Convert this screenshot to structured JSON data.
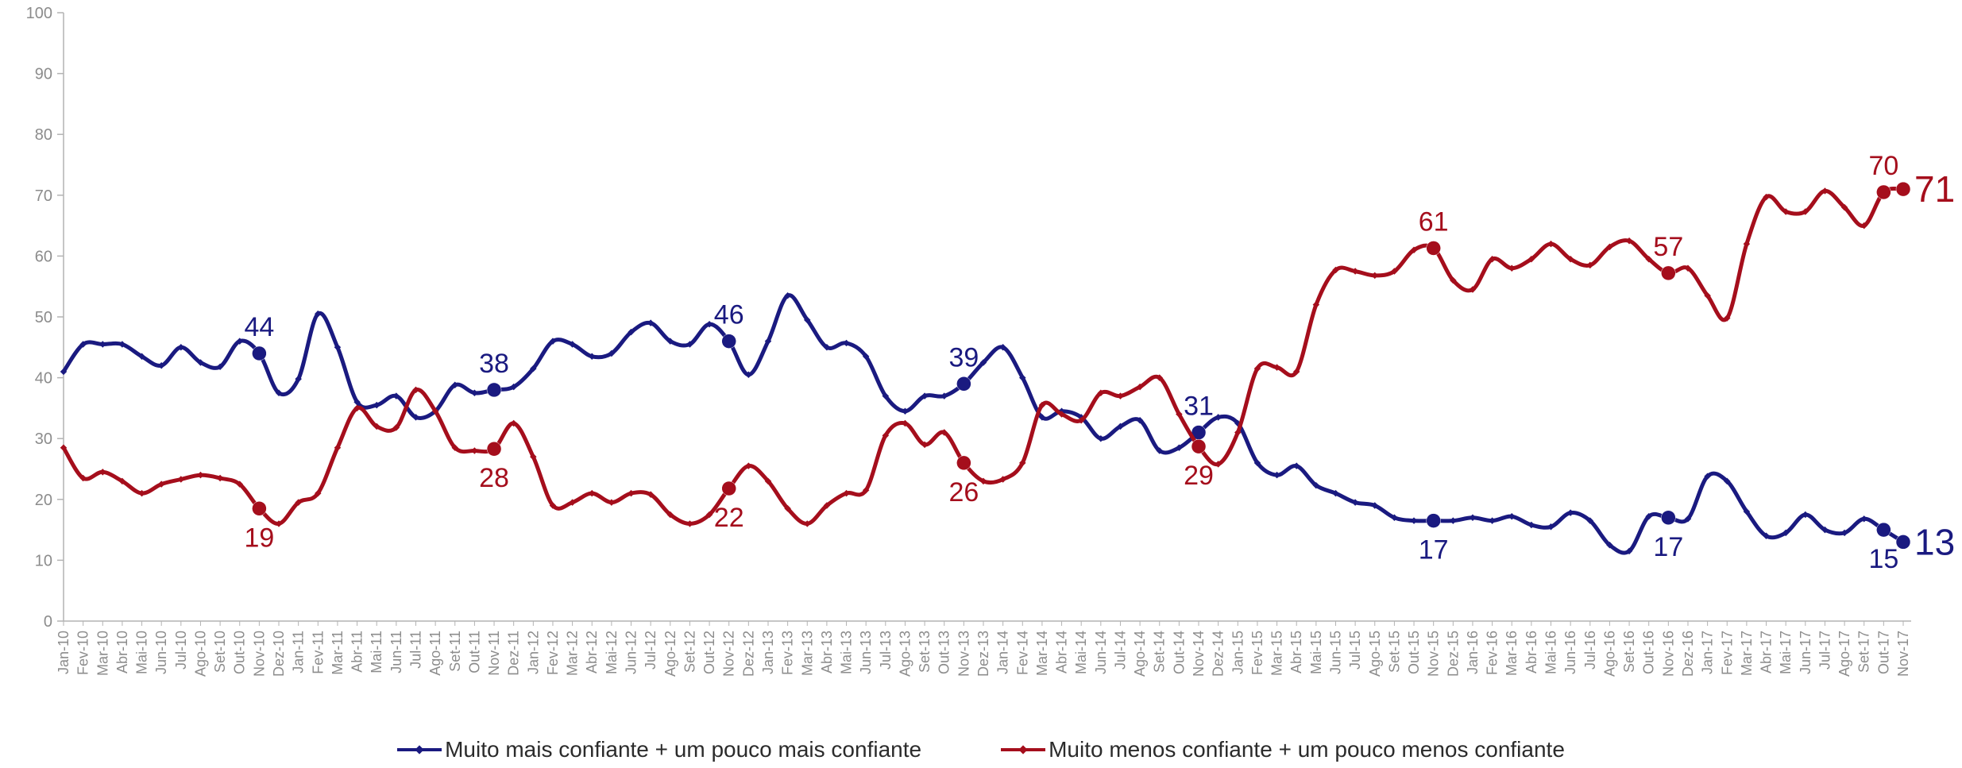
{
  "chart_data": {
    "type": "line",
    "ylim": [
      0,
      100
    ],
    "yticks": [
      0,
      10,
      20,
      30,
      40,
      50,
      60,
      70,
      80,
      90,
      100
    ],
    "grid": false,
    "legend_position": "bottom",
    "categories": [
      "Jan-10",
      "Fev-10",
      "Mar-10",
      "Abr-10",
      "Mai-10",
      "Jun-10",
      "Jul-10",
      "Ago-10",
      "Set-10",
      "Out-10",
      "Nov-10",
      "Dez-10",
      "Jan-11",
      "Fev-11",
      "Mar-11",
      "Abr-11",
      "Mai-11",
      "Jun-11",
      "Jul-11",
      "Ago-11",
      "Set-11",
      "Out-11",
      "Nov-11",
      "Dez-11",
      "Jan-12",
      "Fev-12",
      "Mar-12",
      "Abr-12",
      "Mai-12",
      "Jun-12",
      "Jul-12",
      "Ago-12",
      "Set-12",
      "Out-12",
      "Nov-12",
      "Dez-12",
      "Jan-13",
      "Fev-13",
      "Mar-13",
      "Abr-13",
      "Mai-13",
      "Jun-13",
      "Jul-13",
      "Ago-13",
      "Set-13",
      "Out-13",
      "Nov-13",
      "Dez-13",
      "Jan-14",
      "Fev-14",
      "Mar-14",
      "Abr-14",
      "Mai-14",
      "Jun-14",
      "Jul-14",
      "Ago-14",
      "Set-14",
      "Out-14",
      "Nov-14",
      "Dez-14",
      "Jan-15",
      "Fev-15",
      "Mar-15",
      "Abr-15",
      "Mai-15",
      "Jun-15",
      "Jul-15",
      "Ago-15",
      "Set-15",
      "Out-15",
      "Nov-15",
      "Dez-15",
      "Jan-16",
      "Fev-16",
      "Mar-16",
      "Abr-16",
      "Mai-16",
      "Jun-16",
      "Jul-16",
      "Ago-16",
      "Set-16",
      "Out-16",
      "Nov-16",
      "Dez-16",
      "Jan-17",
      "Fev-17",
      "Mar-17",
      "Abr-17",
      "Mai-17",
      "Jun-17",
      "Jul-17",
      "Ago-17",
      "Set-17",
      "Out-17",
      "Nov-17"
    ],
    "series": [
      {
        "name": "Muito mais confiante + um pouco mais confiante",
        "color": "#1a1a80",
        "values": [
          41,
          45.5,
          45.5,
          45.5,
          43.5,
          42,
          45,
          42.5,
          41.8,
          46,
          44,
          37.5,
          39.8,
          50.5,
          45,
          36,
          35.5,
          37,
          33.5,
          34.5,
          38.8,
          37.5,
          38,
          38.5,
          41.5,
          46,
          45.5,
          43.5,
          44,
          47.5,
          49,
          46,
          45.5,
          48.8,
          46,
          40.5,
          46,
          53.5,
          49.5,
          45,
          45.7,
          43.5,
          37,
          34.5,
          37,
          37,
          39,
          42.5,
          45,
          40,
          33.5,
          34.5,
          33.5,
          30,
          32,
          33,
          28,
          28.5,
          31,
          33.5,
          32.5,
          26,
          24,
          25.5,
          22.3,
          21,
          19.5,
          19,
          17,
          16.5,
          16.5,
          16.5,
          17,
          16.5,
          17.2,
          15.8,
          15.5,
          17.8,
          16.5,
          12.5,
          11.5,
          17.2,
          17,
          16.8,
          23.8,
          23,
          18,
          14,
          14.5,
          17.5,
          15,
          14.5,
          16.8,
          15,
          13
        ]
      },
      {
        "name": "Muito menos confiante + um pouco menos confiante",
        "color": "#a50e1c",
        "values": [
          28.5,
          23.5,
          24.5,
          23,
          21,
          22.5,
          23.3,
          24,
          23.5,
          22.5,
          18.5,
          16,
          19.5,
          21,
          28.5,
          35,
          32,
          31.8,
          38,
          34.5,
          28.5,
          28,
          28.3,
          32.5,
          27,
          19,
          19.5,
          21,
          19.5,
          21,
          20.8,
          17.5,
          16,
          17.5,
          21.8,
          25.5,
          23,
          18.5,
          16,
          19,
          21,
          21.5,
          30.5,
          32.5,
          29,
          31,
          26,
          23,
          23.3,
          26,
          35.5,
          34,
          33,
          37.5,
          37,
          38.5,
          40,
          34,
          28.7,
          25.8,
          31,
          41.5,
          41.7,
          41,
          52,
          57.7,
          57.5,
          56.8,
          57.5,
          61,
          61.3,
          56,
          54.5,
          59.5,
          58,
          59.5,
          62,
          59.5,
          58.5,
          61.5,
          62.5,
          59.5,
          57.2,
          58,
          53.5,
          49.8,
          62,
          69.7,
          67.3,
          67.3,
          70.7,
          68,
          65,
          70.5,
          71
        ]
      }
    ],
    "annotations": {
      "blue": [
        {
          "index": 10,
          "text": "44",
          "pos": "above"
        },
        {
          "index": 22,
          "text": "38",
          "pos": "above"
        },
        {
          "index": 34,
          "text": "46",
          "pos": "above"
        },
        {
          "index": 46,
          "text": "39",
          "pos": "above"
        },
        {
          "index": 58,
          "text": "31",
          "pos": "above"
        },
        {
          "index": 70,
          "text": "17",
          "pos": "below"
        },
        {
          "index": 82,
          "text": "17",
          "pos": "below"
        },
        {
          "index": 93,
          "text": "15",
          "pos": "below"
        },
        {
          "index": 94,
          "text": "13",
          "pos": "right"
        }
      ],
      "red": [
        {
          "index": 10,
          "text": "19",
          "pos": "below"
        },
        {
          "index": 22,
          "text": "28",
          "pos": "below"
        },
        {
          "index": 34,
          "text": "22",
          "pos": "below"
        },
        {
          "index": 46,
          "text": "26",
          "pos": "below"
        },
        {
          "index": 58,
          "text": "29",
          "pos": "below"
        },
        {
          "index": 70,
          "text": "61",
          "pos": "above"
        },
        {
          "index": 82,
          "text": "57",
          "pos": "above"
        },
        {
          "index": 93,
          "text": "70",
          "pos": "above"
        },
        {
          "index": 94,
          "text": "71",
          "pos": "right"
        }
      ]
    }
  },
  "legend": {
    "series_1": "Muito mais confiante + um pouco mais confiante",
    "series_2": "Muito menos confiante + um pouco menos confiante"
  }
}
